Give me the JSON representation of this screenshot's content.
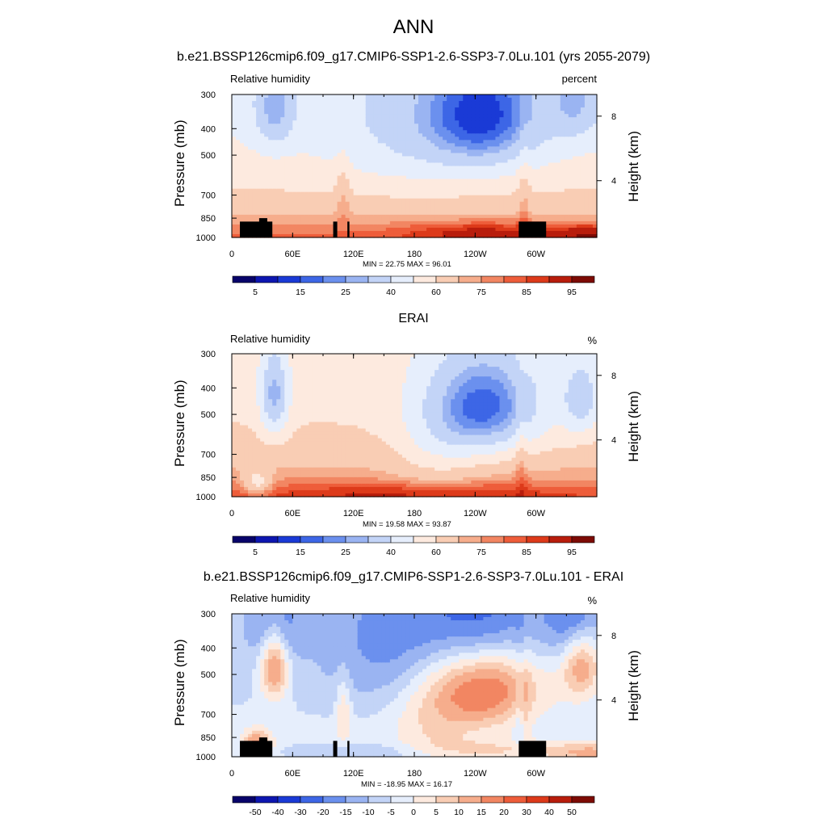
{
  "title": "ANN",
  "colors": {
    "rh_scale": [
      "#08036a",
      "#0d16b0",
      "#1a3ad6",
      "#3d66e6",
      "#6b90ee",
      "#9ab4f2",
      "#c3d4f7",
      "#e6eefc",
      "#fdeadf",
      "#f9cdb4",
      "#f6ad8c",
      "#f28662",
      "#ee5d3a",
      "#dd3a1a",
      "#b81d0c",
      "#7d0b05"
    ],
    "diff_scale": [
      "#08036a",
      "#0d16b0",
      "#1a3ad6",
      "#3d66e6",
      "#6b90ee",
      "#9ab4f2",
      "#c3d4f7",
      "#e6eefc",
      "#fdeadf",
      "#f9cdb4",
      "#f6ad8c",
      "#f28662",
      "#ee5d3a",
      "#dd3a1a",
      "#b81d0c",
      "#7d0b05"
    ],
    "topography": "#000000"
  },
  "panels": [
    {
      "title": "b.e21.BSSP126cmip6.f09_g17.CMIP6-SSP1-2.6-SSP3-7.0Lu.101 (yrs 2055-2079)",
      "left_label": "Relative humidity",
      "right_label": "percent",
      "minmax": "MIN =  22.75  MAX =  96.01",
      "colorbar_labels": [
        "5",
        "15",
        "25",
        "40",
        "60",
        "75",
        "85",
        "95"
      ],
      "kind": "model"
    },
    {
      "title": "ERAI",
      "left_label": "Relative humidity",
      "right_label": "%",
      "minmax": "MIN =  19.58  MAX =  93.87",
      "colorbar_labels": [
        "5",
        "15",
        "25",
        "40",
        "60",
        "75",
        "85",
        "95"
      ],
      "kind": "obs"
    },
    {
      "title": "b.e21.BSSP126cmip6.f09_g17.CMIP6-SSP1-2.6-SSP3-7.0Lu.101 - ERAI",
      "left_label": "Relative humidity",
      "right_label": "%",
      "minmax": "MIN = -18.95  MAX =  16.17",
      "colorbar_labels": [
        "-50",
        "-40",
        "-30",
        "-20",
        "-15",
        "-10",
        "-5",
        "0",
        "5",
        "10",
        "15",
        "20",
        "30",
        "40",
        "50"
      ],
      "kind": "diff"
    }
  ],
  "axes": {
    "x_ticks": [
      "0",
      "60E",
      "120E",
      "180",
      "120W",
      "60W"
    ],
    "y_ticks": [
      "300",
      "400",
      "500",
      "700",
      "850",
      "1000"
    ],
    "y_label": "Pressure (mb)",
    "y2_ticks": [
      "8",
      "4"
    ],
    "y2_label": "Height (km)"
  },
  "chart_data": [
    {
      "type": "heatmap",
      "title": "b.e21.BSSP126cmip6.f09_g17.CMIP6-SSP1-2.6-SSP3-7.0Lu.101 (yrs 2055-2079)",
      "xlabel": "",
      "ylabel": "Pressure (mb)",
      "x_range": [
        0,
        360
      ],
      "y_range": [
        1000,
        300
      ],
      "y_scale": "log",
      "units": "percent",
      "min": 22.75,
      "max": 96.01,
      "levels": [
        5,
        10,
        15,
        20,
        25,
        30,
        40,
        50,
        60,
        70,
        75,
        80,
        85,
        90,
        95
      ],
      "features": [
        {
          "name": "dry core",
          "lon": 250,
          "pressure": 390,
          "value": 23
        },
        {
          "name": "dry core",
          "lon": 40,
          "pressure": 390,
          "value": 30
        },
        {
          "name": "dry core",
          "lon": 340,
          "pressure": 330,
          "value": 32
        },
        {
          "name": "moist boundary layer",
          "lon": 240,
          "pressure": 900,
          "value": 95
        },
        {
          "name": "moist boundary layer",
          "lon": 340,
          "pressure": 900,
          "value": 95
        }
      ]
    },
    {
      "type": "heatmap",
      "title": "ERAI",
      "xlabel": "",
      "ylabel": "Pressure (mb)",
      "x_range": [
        0,
        360
      ],
      "y_range": [
        1000,
        300
      ],
      "y_scale": "log",
      "units": "%",
      "min": 19.58,
      "max": 93.87,
      "levels": [
        5,
        10,
        15,
        20,
        25,
        30,
        40,
        50,
        60,
        70,
        75,
        80,
        85,
        90,
        95
      ],
      "features": [
        {
          "name": "dry core",
          "lon": 252,
          "pressure": 420,
          "value": 20
        },
        {
          "name": "dry core",
          "lon": 42,
          "pressure": 410,
          "value": 22
        },
        {
          "name": "dry core",
          "lon": 345,
          "pressure": 400,
          "value": 33
        },
        {
          "name": "moist boundary layer",
          "lon": 180,
          "pressure": 930,
          "value": 92
        }
      ]
    },
    {
      "type": "heatmap",
      "title": "b.e21.BSSP126cmip6.f09_g17.CMIP6-SSP1-2.6-SSP3-7.0Lu.101 - ERAI",
      "xlabel": "",
      "ylabel": "Pressure (mb)",
      "x_range": [
        0,
        360
      ],
      "y_range": [
        1000,
        300
      ],
      "y_scale": "log",
      "units": "%",
      "min": -18.95,
      "max": 16.17,
      "levels": [
        -50,
        -40,
        -30,
        -20,
        -15,
        -10,
        -5,
        0,
        5,
        10,
        15,
        20,
        30,
        40,
        50
      ],
      "features": [
        {
          "name": "negative",
          "lon": 25,
          "pressure": 330,
          "value": -15
        },
        {
          "name": "negative",
          "lon": 90,
          "pressure": 330,
          "value": -17
        },
        {
          "name": "negative",
          "lon": 305,
          "pressure": 330,
          "value": -14
        },
        {
          "name": "negative",
          "lon": 25,
          "pressure": 900,
          "value": -18
        },
        {
          "name": "negative",
          "lon": 295,
          "pressure": 900,
          "value": -18
        },
        {
          "name": "positive",
          "lon": 248,
          "pressure": 680,
          "value": 16
        },
        {
          "name": "positive",
          "lon": 200,
          "pressure": 620,
          "value": 11
        }
      ]
    }
  ]
}
